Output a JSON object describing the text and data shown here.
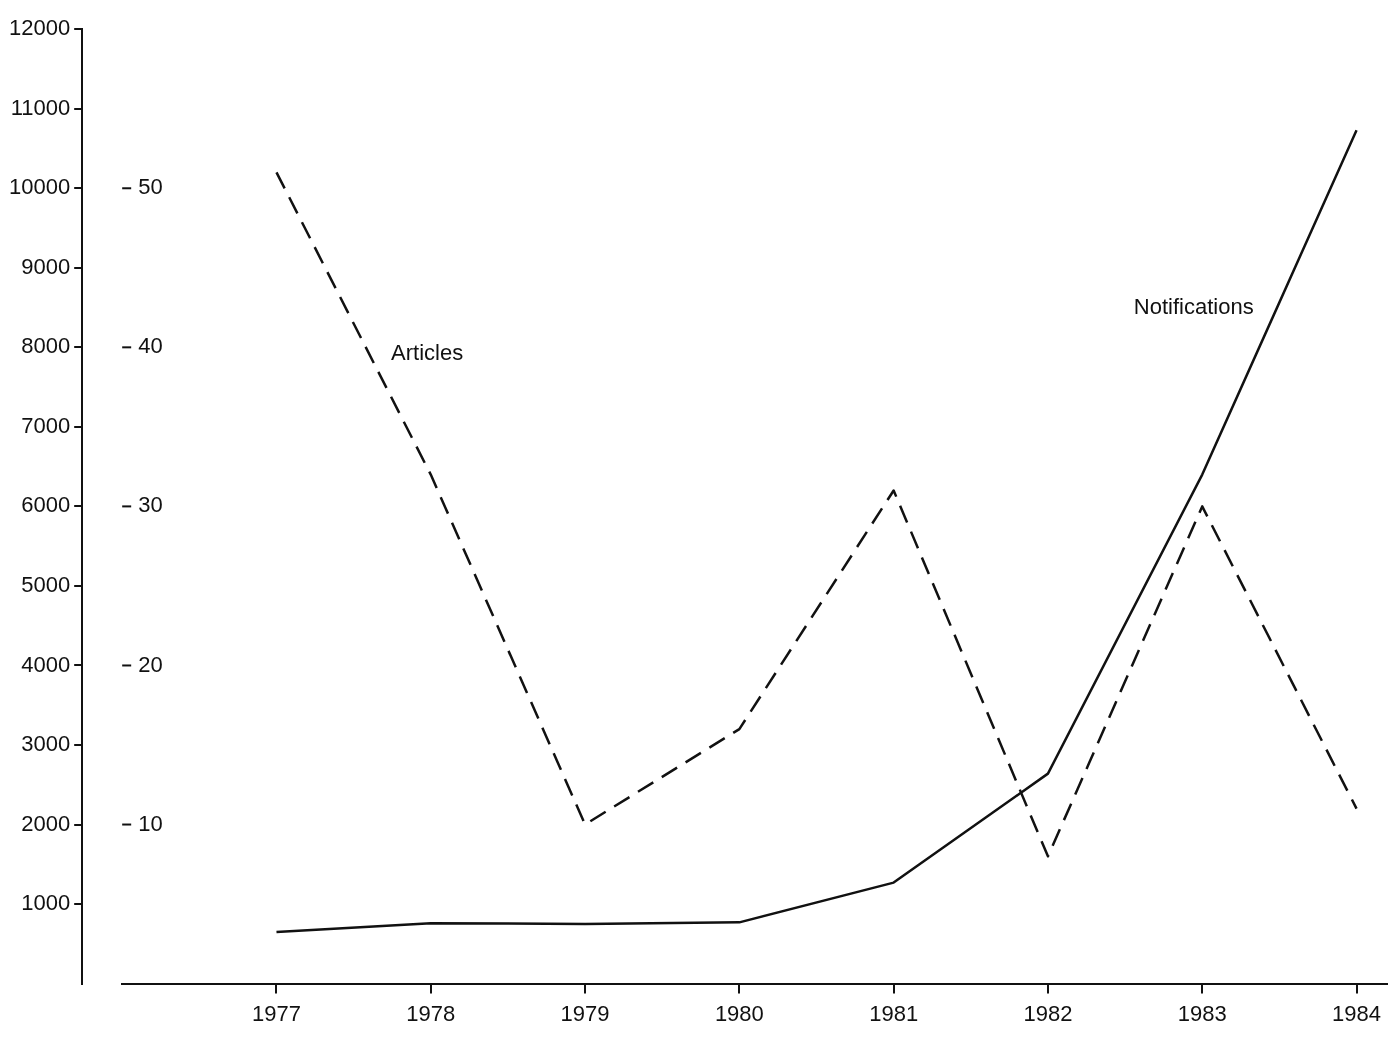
{
  "chart_data": {
    "type": "line",
    "x": [
      1977,
      1978,
      1979,
      1980,
      1981,
      1982,
      1983,
      1984
    ],
    "xlim": [
      1976,
      1984.2
    ],
    "xticks": [
      1977,
      1978,
      1979,
      1980,
      1981,
      1982,
      1983,
      1984
    ],
    "ylim": [
      0,
      12000
    ],
    "yticks": [
      1000,
      2000,
      3000,
      4000,
      5000,
      6000,
      7000,
      8000,
      9000,
      10000,
      11000,
      12000
    ],
    "y2lim": [
      0,
      60
    ],
    "y2ticks": [
      10,
      20,
      30,
      40,
      50
    ],
    "series": [
      {
        "name": "Notifications",
        "color": "#111111",
        "line_style": "solid",
        "values": [
          650,
          760,
          750,
          770,
          1270,
          2640,
          6400,
          10730
        ]
      },
      {
        "name": "Articles",
        "color": "#111111",
        "line_style": "dashed",
        "axis": "y2",
        "values": [
          51,
          32,
          10,
          16,
          31,
          8,
          30,
          11
        ]
      }
    ],
    "grid": false,
    "legend": false,
    "marker": "none"
  }
}
